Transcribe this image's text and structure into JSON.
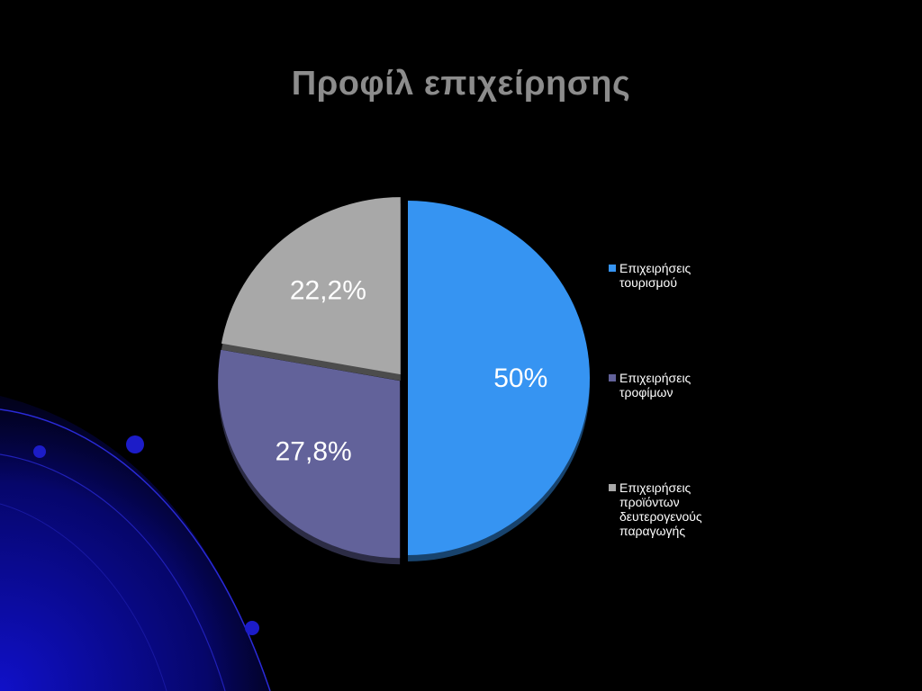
{
  "slide": {
    "title": "Προφίλ επιχείρησης"
  },
  "chart_data": {
    "type": "pie",
    "title": "",
    "categories": [
      "Επιχειρήσεις τουρισμού",
      "Επιχειρήσεις τροφίμων",
      "Επιχειρήσεις προϊόντων δευτερογενούς παραγωγής"
    ],
    "values": [
      50,
      27.8,
      22.2
    ],
    "data_labels": [
      "50%",
      "27,8%",
      "22,2%"
    ],
    "colors": [
      "#3694f2",
      "#62629a",
      "#a8a8a8"
    ],
    "legend": "right",
    "legend_display": [
      "Επιχειρήσεις\nτουρισμού",
      "Επιχειρήσεις\nτροφίμων",
      "Επιχειρήσεις\nπροϊόντων\nδευτερογενούς\nπαραγωγής"
    ]
  },
  "background": {
    "decoration": "blue-orbit-lines",
    "accent_color": "#1a1aff"
  }
}
